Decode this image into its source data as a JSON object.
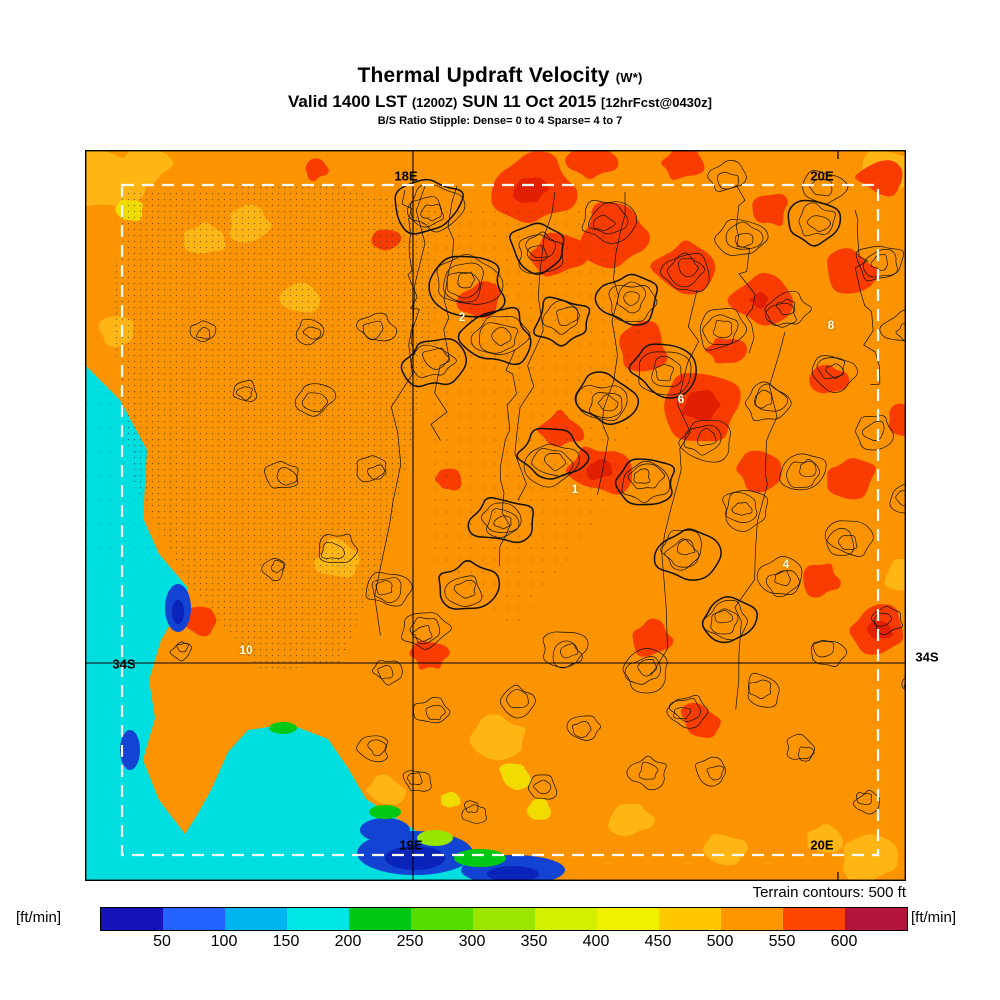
{
  "title": {
    "main": "Thermal Updraft Velocity",
    "main_suffix": "(W*)",
    "valid_prefix": "Valid 1400 LST",
    "valid_zulu": "(1200Z)",
    "valid_date": "SUN 11 Oct 2015",
    "forecast_tag": "[12hrFcst@0430z]",
    "stipple_note": "B/S Ratio Stipple:  Dense= 0 to 4  Sparse= 4 to 7"
  },
  "map": {
    "labels": {
      "top_left_lon": "18E",
      "top_right_lon": "20E",
      "left_lat": "34S",
      "right_lat": "34S",
      "bottom_left_lon": "19E",
      "bottom_right_lon": "20E"
    },
    "site_numbers": [
      "2",
      "8",
      "6",
      "1",
      "4",
      "10"
    ],
    "terrain_note": "Terrain contours: 500 ft"
  },
  "colorbar": {
    "unit_left": "[ft/min]",
    "unit_right": "[ft/min]",
    "ticks": [
      "50",
      "100",
      "150",
      "200",
      "250",
      "300",
      "350",
      "400",
      "450",
      "500",
      "550",
      "600"
    ],
    "colors": [
      "#1414B9",
      "#2362FF",
      "#00B4F0",
      "#00E6E6",
      "#00C814",
      "#55DC00",
      "#9BE600",
      "#D2F000",
      "#F0F000",
      "#FFC800",
      "#FF9600",
      "#FF4600",
      "#B4143C"
    ]
  },
  "chart_data": {
    "type": "heatmap",
    "title": "Thermal Updraft Velocity (W*)",
    "valid": "Valid 1400 LST (1200Z) SUN 11 Oct 2015 [12hrFcst@0430z]",
    "stipple_legend": "B/S Ratio Stipple: Dense= 0 to 4, Sparse= 4 to 7",
    "units": "ft/min",
    "scale_ticks": [
      50,
      100,
      150,
      200,
      250,
      300,
      350,
      400,
      450,
      500,
      550,
      600
    ],
    "scale_colors": [
      "#1414B9",
      "#2362FF",
      "#00B4F0",
      "#00E6E6",
      "#00C814",
      "#55DC00",
      "#9BE600",
      "#D2F000",
      "#F0F000",
      "#FFC800",
      "#FF9600",
      "#FF4600",
      "#B4143C"
    ],
    "graticule_longitudes": [
      "18E",
      "19E",
      "20E"
    ],
    "graticule_latitudes": [
      "34S"
    ],
    "site_markers": [
      "2",
      "8",
      "6",
      "1",
      "4",
      "10"
    ],
    "terrain_contour_interval_ft": 500,
    "summary": "Thermal updraft velocity mostly 450-550 ft/min (orange) over land, 550-600+ ft/min (red) over the mountain ranges; 100-250 ft/min (cyan/blue) over the ocean in the southwest corner (Cape Peninsula / False Bay region)."
  }
}
